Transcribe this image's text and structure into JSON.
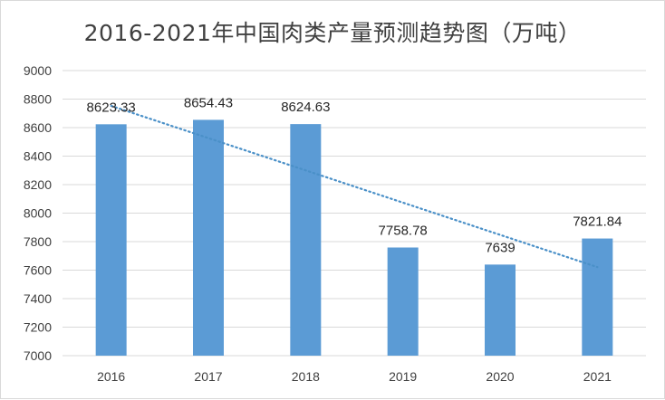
{
  "chart_data": {
    "type": "bar",
    "title": "2016-2021年中国肉类产量预测趋势图（万吨）",
    "categories": [
      "2016",
      "2017",
      "2018",
      "2019",
      "2020",
      "2021"
    ],
    "values": [
      8623.33,
      8654.43,
      8624.63,
      7758.78,
      7639,
      7821.84
    ],
    "data_labels": [
      "8623.33",
      "8654.43",
      "8624.63",
      "7758.78",
      "7639",
      "7821.84"
    ],
    "xlabel": "",
    "ylabel": "",
    "ylim": [
      7000,
      9000
    ],
    "yticks": [
      7000,
      7200,
      7400,
      7600,
      7800,
      8000,
      8200,
      8400,
      8600,
      8800,
      9000
    ],
    "grid": true,
    "trendline": {
      "type": "linear",
      "style": "dotted",
      "color": "#4a90c8"
    },
    "bar_color": "#5b9bd5"
  }
}
